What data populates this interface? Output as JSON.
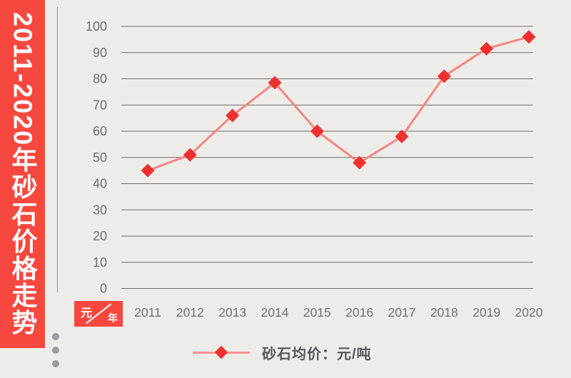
{
  "banner": {
    "title": "2011-2020年砂石价格走势"
  },
  "axis_badge": {
    "numerator": "元",
    "denominator": "年"
  },
  "legend": {
    "label": "砂石均价：元/吨"
  },
  "colors": {
    "background": "#eeece9",
    "banner_red": "#f7483f",
    "marker_red": "#f0302e",
    "line_pink": "#f8847f",
    "grid_gray": "#6d6d6d",
    "axis_gray": "#909090",
    "tick_text_gray": "#6f6f6f",
    "legend_text_gray": "#585858",
    "dot_gray": "#9c9c9c"
  },
  "chart_data": {
    "type": "line",
    "title": "2011-2020年砂石价格走势",
    "categories": [
      "2011",
      "2012",
      "2013",
      "2014",
      "2015",
      "2016",
      "2017",
      "2018",
      "2019",
      "2020"
    ],
    "series": [
      {
        "name": "砂石均价：元/吨",
        "values": [
          45,
          51,
          66,
          78.5,
          60,
          48,
          58,
          81,
          91.5,
          96
        ]
      }
    ],
    "xlabel": "年",
    "ylabel": "元",
    "ylim": [
      0,
      100
    ],
    "ytick_step": 10,
    "grid": true,
    "legend_position": "bottom",
    "marker_shape": "diamond"
  }
}
